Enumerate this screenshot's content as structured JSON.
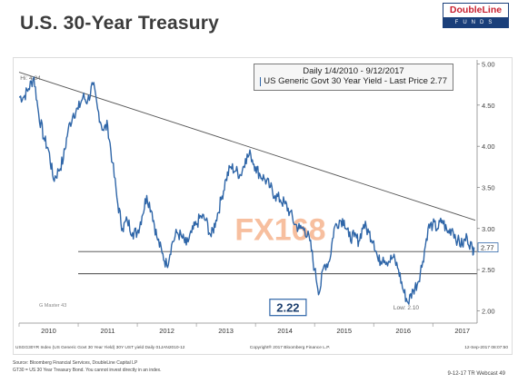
{
  "slide": {
    "title": "U.S. 30-Year Treasury"
  },
  "logo": {
    "name": "DoubleLine",
    "sub": "FUNDS"
  },
  "legend": {
    "row1": "Daily 1/4/2010 - 9/12/2017",
    "row2": "US Generic Govt 30 Year Yield - Last Price 2.77"
  },
  "watermark": {
    "text": "FX168"
  },
  "annotations": {
    "hi": "Hi: 4.84",
    "low": "Low: 2.10",
    "big_value": "2.22",
    "last_price": "2.77",
    "master": "G Master 43"
  },
  "bloomberg_bar": {
    "left": "USGG30YR Index (US Generic Govt 30 Year Yield) 30Y UST yield  Daily 01JAN2010-12",
    "center": "Copyright® 2017 Bloomberg Finance L.P.",
    "right": "12-Sep-2017 08:07:50"
  },
  "footer": {
    "source": "Source: Bloomberg Financial Services, DoubleLine Capital LP",
    "note": "GT30 = US 30 Year Treasury Bond. You cannot invest directly in an index.",
    "page": "9-12-17 TR Webcast 49"
  },
  "colors": {
    "series": "#2f66a8",
    "trend": "#555555",
    "support": "#444444",
    "accent": "#2f66a8"
  },
  "chart_data": {
    "type": "line",
    "title": "",
    "xlabel": "",
    "ylabel": "",
    "x_ticks": [
      "2010",
      "2011",
      "2012",
      "2013",
      "2014",
      "2015",
      "2016",
      "2017"
    ],
    "y_ticks": [
      "2.00",
      "2.50",
      "3.00",
      "3.50",
      "4.00",
      "4.50",
      "5.00"
    ],
    "ylim": [
      1.85,
      5.05
    ],
    "xlim": [
      2010.0,
      2017.75
    ],
    "series": [
      {
        "name": "US Generic Govt 30 Year Yield - Last Price",
        "x": [
          2010.0,
          2010.08,
          2010.16,
          2010.25,
          2010.33,
          2010.42,
          2010.5,
          2010.58,
          2010.67,
          2010.75,
          2010.83,
          2010.92,
          2011.0,
          2011.08,
          2011.16,
          2011.25,
          2011.33,
          2011.42,
          2011.5,
          2011.58,
          2011.67,
          2011.75,
          2011.83,
          2011.92,
          2012.0,
          2012.08,
          2012.16,
          2012.25,
          2012.33,
          2012.42,
          2012.5,
          2012.58,
          2012.67,
          2012.75,
          2012.83,
          2012.92,
          2013.0,
          2013.08,
          2013.16,
          2013.25,
          2013.33,
          2013.42,
          2013.5,
          2013.58,
          2013.67,
          2013.75,
          2013.83,
          2013.92,
          2014.0,
          2014.08,
          2014.16,
          2014.25,
          2014.33,
          2014.42,
          2014.5,
          2014.58,
          2014.67,
          2014.75,
          2014.83,
          2014.92,
          2015.0,
          2015.08,
          2015.16,
          2015.25,
          2015.33,
          2015.42,
          2015.5,
          2015.58,
          2015.67,
          2015.75,
          2015.83,
          2015.92,
          2016.0,
          2016.08,
          2016.16,
          2016.25,
          2016.33,
          2016.42,
          2016.5,
          2016.58,
          2016.67,
          2016.75,
          2016.83,
          2016.92,
          2017.0,
          2017.08,
          2017.16,
          2017.25,
          2017.33,
          2017.42,
          2017.5,
          2017.58,
          2017.67,
          2017.7
        ],
        "values": [
          4.6,
          4.6,
          4.7,
          4.84,
          4.4,
          4.1,
          3.95,
          3.6,
          3.7,
          3.85,
          4.2,
          4.4,
          4.45,
          4.6,
          4.55,
          4.75,
          4.45,
          4.2,
          4.25,
          3.8,
          3.3,
          3.0,
          3.1,
          2.95,
          2.95,
          3.15,
          3.4,
          3.2,
          2.9,
          2.7,
          2.55,
          2.8,
          2.95,
          2.9,
          2.8,
          2.95,
          3.05,
          3.15,
          3.1,
          2.9,
          3.1,
          3.35,
          3.6,
          3.75,
          3.7,
          3.65,
          3.85,
          3.9,
          3.75,
          3.65,
          3.6,
          3.5,
          3.4,
          3.35,
          3.3,
          3.2,
          3.05,
          3.0,
          3.0,
          2.85,
          2.5,
          2.22,
          2.55,
          2.6,
          3.0,
          3.1,
          3.1,
          2.9,
          2.9,
          2.85,
          3.05,
          2.95,
          2.85,
          2.6,
          2.65,
          2.6,
          2.65,
          2.5,
          2.25,
          2.1,
          2.25,
          2.35,
          2.6,
          3.0,
          3.05,
          3.0,
          3.1,
          2.95,
          3.0,
          2.85,
          2.8,
          2.9,
          2.75,
          2.77
        ]
      }
    ],
    "trendline": {
      "x": [
        2010.0,
        2017.72
      ],
      "y": [
        4.9,
        3.1
      ]
    },
    "support_lines": [
      2.72,
      2.45
    ],
    "grid": false,
    "legend_position": "top-right"
  }
}
